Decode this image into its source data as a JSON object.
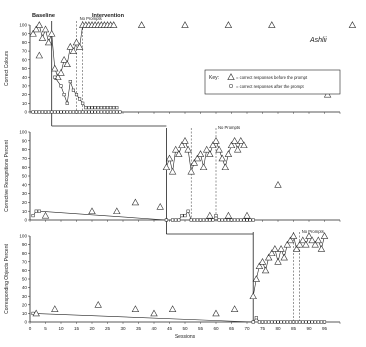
{
  "chart_data": [
    {
      "type": "line",
      "panel": "top",
      "title": "",
      "participant": "Ashlii",
      "ylabel": "Correct Colours",
      "ylim": [
        0,
        100
      ],
      "yticks": [
        "0",
        "10",
        "20",
        "30",
        "40",
        "50",
        "60",
        "70",
        "80",
        "90",
        "100"
      ],
      "phase_labels": [
        "Baseline",
        "Intervention",
        "No Prompts"
      ],
      "legend": {
        "key_label": "Key:",
        "items": [
          "= correct responses before the prompt",
          "= correct responses after the prompt"
        ]
      },
      "baseline_end_session": 7,
      "dashed_lines": [
        15,
        17
      ],
      "series": [
        {
          "kind": "before_prompt",
          "points": [
            [
              1,
              0
            ],
            [
              2,
              0
            ],
            [
              3,
              0
            ],
            [
              4,
              0
            ],
            [
              5,
              0
            ],
            [
              6,
              0
            ],
            [
              7,
              0
            ],
            [
              8,
              0
            ],
            [
              9,
              0
            ],
            [
              10,
              0
            ],
            [
              11,
              0
            ],
            [
              12,
              0
            ],
            [
              13,
              0
            ],
            [
              14,
              0
            ],
            [
              15,
              0
            ],
            [
              16,
              0
            ],
            [
              17,
              0
            ],
            [
              18,
              0
            ],
            [
              19,
              0
            ],
            [
              20,
              0
            ],
            [
              21,
              0
            ],
            [
              22,
              0
            ],
            [
              23,
              0
            ],
            [
              24,
              0
            ],
            [
              25,
              0
            ],
            [
              26,
              0
            ],
            [
              27,
              0
            ],
            [
              28,
              0
            ],
            [
              29,
              0
            ]
          ]
        },
        {
          "kind": "after_prompt",
          "points": [
            [
              1,
              90
            ],
            [
              2,
              95
            ],
            [
              3,
              100
            ],
            [
              4,
              85
            ],
            [
              5,
              95
            ],
            [
              6,
              80
            ],
            [
              7,
              90
            ],
            [
              8,
              50
            ],
            [
              9,
              40
            ],
            [
              10,
              45
            ],
            [
              11,
              60
            ],
            [
              12,
              55
            ],
            [
              13,
              75
            ],
            [
              14,
              70
            ],
            [
              15,
              80
            ],
            [
              16,
              75
            ],
            [
              17,
              100
            ],
            [
              18,
              100
            ],
            [
              19,
              100
            ],
            [
              20,
              100
            ],
            [
              21,
              100
            ],
            [
              22,
              100
            ],
            [
              23,
              100
            ],
            [
              24,
              100
            ],
            [
              25,
              100
            ],
            [
              26,
              100
            ],
            [
              27,
              100
            ]
          ]
        },
        {
          "kind": "extra",
          "points": [
            [
              8,
              40
            ],
            [
              10,
              30
            ],
            [
              11,
              20
            ],
            [
              12,
              10
            ],
            [
              13,
              35
            ],
            [
              14,
              25
            ],
            [
              15,
              20
            ],
            [
              16,
              15
            ],
            [
              17,
              10
            ],
            [
              18,
              5
            ],
            [
              19,
              5
            ],
            [
              20,
              5
            ],
            [
              21,
              5
            ],
            [
              22,
              5
            ],
            [
              23,
              5
            ],
            [
              24,
              5
            ],
            [
              25,
              5
            ],
            [
              26,
              5
            ],
            [
              27,
              5
            ],
            [
              28,
              5
            ]
          ]
        }
      ],
      "isolated_triangles": [
        [
          3,
          65
        ],
        [
          36,
          100
        ],
        [
          50,
          100
        ],
        [
          64,
          100
        ],
        [
          78,
          100
        ],
        [
          96,
          20
        ],
        [
          104,
          100
        ],
        [
          114,
          100
        ],
        [
          120,
          100
        ]
      ]
    },
    {
      "type": "line",
      "panel": "middle",
      "title": "",
      "ylabel": "Corrective Recognitions Percent",
      "ylim": [
        0,
        100
      ],
      "yticks": [
        "0",
        "10",
        "20",
        "30",
        "40",
        "50",
        "60",
        "70",
        "80",
        "90",
        "100"
      ],
      "phase_labels": [
        "No Prompts"
      ],
      "baseline_end_session": 44,
      "dashed_lines": [
        52,
        60
      ],
      "series": [
        {
          "kind": "before_prompt",
          "points": [
            [
              1,
              5
            ],
            [
              2,
              10
            ],
            [
              3,
              10
            ],
            [
              44,
              0
            ],
            [
              46,
              0
            ],
            [
              47,
              0
            ],
            [
              48,
              0
            ],
            [
              49,
              5
            ],
            [
              50,
              5
            ],
            [
              51,
              10
            ],
            [
              52,
              0
            ],
            [
              53,
              0
            ],
            [
              54,
              0
            ],
            [
              55,
              0
            ],
            [
              56,
              0
            ],
            [
              57,
              0
            ],
            [
              58,
              0
            ],
            [
              59,
              0
            ],
            [
              60,
              5
            ],
            [
              61,
              0
            ],
            [
              62,
              0
            ],
            [
              63,
              0
            ],
            [
              64,
              0
            ],
            [
              65,
              0
            ],
            [
              66,
              0
            ],
            [
              67,
              0
            ],
            [
              68,
              0
            ],
            [
              69,
              0
            ],
            [
              70,
              0
            ],
            [
              71,
              0
            ],
            [
              72,
              0
            ]
          ]
        },
        {
          "kind": "after_prompt",
          "points": [
            [
              44,
              60
            ],
            [
              45,
              70
            ],
            [
              46,
              55
            ],
            [
              47,
              80
            ],
            [
              48,
              75
            ],
            [
              49,
              85
            ],
            [
              50,
              90
            ],
            [
              51,
              80
            ],
            [
              52,
              55
            ],
            [
              53,
              65
            ],
            [
              54,
              70
            ],
            [
              55,
              75
            ],
            [
              56,
              60
            ],
            [
              57,
              80
            ],
            [
              58,
              75
            ],
            [
              59,
              85
            ],
            [
              60,
              90
            ],
            [
              61,
              80
            ],
            [
              62,
              70
            ],
            [
              63,
              60
            ],
            [
              64,
              75
            ],
            [
              65,
              85
            ],
            [
              66,
              90
            ],
            [
              67,
              80
            ],
            [
              68,
              90
            ],
            [
              69,
              85
            ]
          ]
        }
      ],
      "isolated_triangles": [
        [
          5,
          5
        ],
        [
          20,
          10
        ],
        [
          28,
          10
        ],
        [
          34,
          20
        ],
        [
          42,
          15
        ],
        [
          58,
          5
        ],
        [
          64,
          5
        ],
        [
          70,
          5
        ],
        [
          80,
          40
        ]
      ]
    },
    {
      "type": "line",
      "panel": "bottom",
      "title": "",
      "ylabel": "Corresponding Objects Percent",
      "xlabel": "Sessions",
      "ylim": [
        0,
        100
      ],
      "yticks": [
        "0",
        "10",
        "20",
        "30",
        "40",
        "50",
        "60",
        "70",
        "80",
        "90",
        "100"
      ],
      "xticks": [
        "0",
        "5",
        "10",
        "15",
        "20",
        "25",
        "30",
        "35",
        "40",
        "45",
        "50",
        "55",
        "60",
        "65",
        "70",
        "75",
        "80",
        "85",
        "90",
        "95"
      ],
      "phase_labels": [
        "No Prompts"
      ],
      "baseline_end_session": 72,
      "dashed_lines": [
        85,
        87
      ],
      "series": [
        {
          "kind": "before_prompt",
          "points": [
            [
              1,
              10
            ],
            [
              72,
              0
            ],
            [
              73,
              5
            ],
            [
              74,
              0
            ],
            [
              75,
              0
            ],
            [
              76,
              0
            ],
            [
              77,
              0
            ],
            [
              78,
              0
            ],
            [
              79,
              0
            ],
            [
              80,
              0
            ],
            [
              81,
              0
            ],
            [
              82,
              0
            ],
            [
              83,
              0
            ],
            [
              84,
              0
            ],
            [
              85,
              0
            ],
            [
              86,
              0
            ],
            [
              87,
              0
            ],
            [
              88,
              0
            ],
            [
              89,
              0
            ],
            [
              90,
              0
            ],
            [
              91,
              0
            ],
            [
              92,
              0
            ],
            [
              93,
              0
            ],
            [
              94,
              0
            ],
            [
              95,
              0
            ]
          ]
        },
        {
          "kind": "after_prompt",
          "points": [
            [
              72,
              30
            ],
            [
              73,
              50
            ],
            [
              74,
              65
            ],
            [
              75,
              70
            ],
            [
              76,
              60
            ],
            [
              77,
              75
            ],
            [
              78,
              80
            ],
            [
              79,
              85
            ],
            [
              80,
              70
            ],
            [
              81,
              85
            ],
            [
              82,
              75
            ],
            [
              83,
              90
            ],
            [
              84,
              95
            ],
            [
              85,
              100
            ],
            [
              86,
              85
            ],
            [
              87,
              90
            ],
            [
              88,
              95
            ],
            [
              89,
              90
            ],
            [
              90,
              100
            ],
            [
              91,
              95
            ],
            [
              92,
              90
            ],
            [
              93,
              95
            ],
            [
              94,
              85
            ],
            [
              95,
              100
            ]
          ]
        }
      ],
      "isolated_triangles": [
        [
          2,
          10
        ],
        [
          8,
          15
        ],
        [
          22,
          20
        ],
        [
          34,
          15
        ],
        [
          40,
          10
        ],
        [
          46,
          15
        ],
        [
          60,
          10
        ],
        [
          66,
          15
        ]
      ]
    }
  ]
}
